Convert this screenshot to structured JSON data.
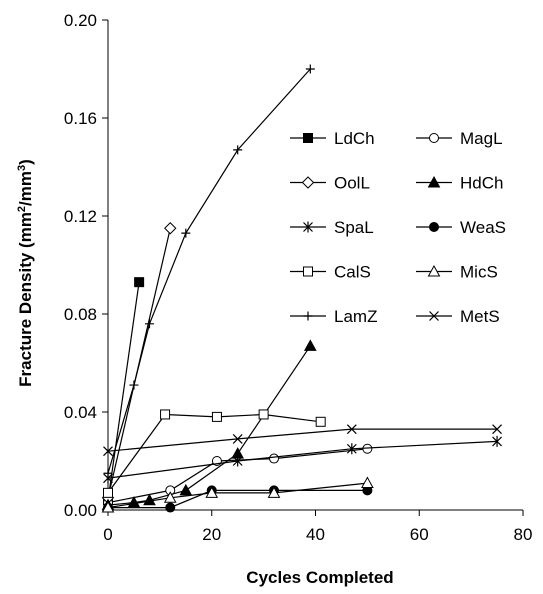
{
  "chart_data": {
    "type": "line",
    "title": "",
    "xlabel": "Cycles Completed",
    "ylabel": "Fracture Density (mm²/mm³)",
    "ylabel_parts": [
      "Fracture Density (mm",
      "2",
      "/mm",
      "3",
      ")"
    ],
    "xlim": [
      0,
      80
    ],
    "ylim": [
      0,
      0.2
    ],
    "x_ticks": [
      0,
      20,
      40,
      60,
      80
    ],
    "x_tick_labels": [
      "0",
      "20",
      "40",
      "60",
      "80"
    ],
    "y_ticks": [
      0,
      0.04,
      0.08,
      0.12,
      0.16,
      0.2
    ],
    "y_tick_labels": [
      "0.00",
      "0.04",
      "0.08",
      "0.12",
      "0.16",
      "0.20"
    ],
    "grid": false,
    "legend_position": "right, inside plot",
    "series": [
      {
        "name": "LdCh",
        "marker": "filled-square",
        "points": [
          [
            0,
            0.004
          ],
          [
            6,
            0.093
          ]
        ]
      },
      {
        "name": "MagL",
        "marker": "open-circle",
        "points": [
          [
            0,
            0.003
          ],
          [
            12,
            0.008
          ],
          [
            21,
            0.02
          ],
          [
            32,
            0.021
          ],
          [
            50,
            0.025
          ]
        ]
      },
      {
        "name": "OolL",
        "marker": "open-diamond",
        "points": [
          [
            0,
            0.005
          ],
          [
            12,
            0.115
          ]
        ]
      },
      {
        "name": "HdCh",
        "marker": "filled-triangle",
        "points": [
          [
            0,
            0.002
          ],
          [
            5,
            0.003
          ],
          [
            8,
            0.004
          ],
          [
            15,
            0.008
          ],
          [
            25,
            0.023
          ],
          [
            39,
            0.067
          ]
        ]
      },
      {
        "name": "SpaL",
        "marker": "asterisk",
        "points": [
          [
            0,
            0.013
          ],
          [
            25,
            0.02
          ],
          [
            47,
            0.025
          ],
          [
            75,
            0.028
          ]
        ]
      },
      {
        "name": "WeaS",
        "marker": "filled-circle",
        "points": [
          [
            0,
            0.001
          ],
          [
            12,
            0.001
          ],
          [
            20,
            0.008
          ],
          [
            32,
            0.008
          ],
          [
            50,
            0.008
          ]
        ]
      },
      {
        "name": "CalS",
        "marker": "open-square",
        "points": [
          [
            0,
            0.007
          ],
          [
            11,
            0.039
          ],
          [
            21,
            0.038
          ],
          [
            30,
            0.039
          ],
          [
            41,
            0.036
          ]
        ]
      },
      {
        "name": "MicS",
        "marker": "open-triangle",
        "points": [
          [
            0,
            0.001
          ],
          [
            12,
            0.005
          ],
          [
            20,
            0.007
          ],
          [
            32,
            0.007
          ],
          [
            50,
            0.011
          ]
        ]
      },
      {
        "name": "LamZ",
        "marker": "plus",
        "points": [
          [
            0,
            0.015
          ],
          [
            5,
            0.051
          ],
          [
            8,
            0.076
          ],
          [
            15,
            0.113
          ],
          [
            25,
            0.147
          ],
          [
            39,
            0.18
          ]
        ]
      },
      {
        "name": "MetS",
        "marker": "cross",
        "points": [
          [
            0,
            0.024
          ],
          [
            25,
            0.029
          ],
          [
            47,
            0.033
          ],
          [
            75,
            0.033
          ]
        ]
      }
    ]
  }
}
